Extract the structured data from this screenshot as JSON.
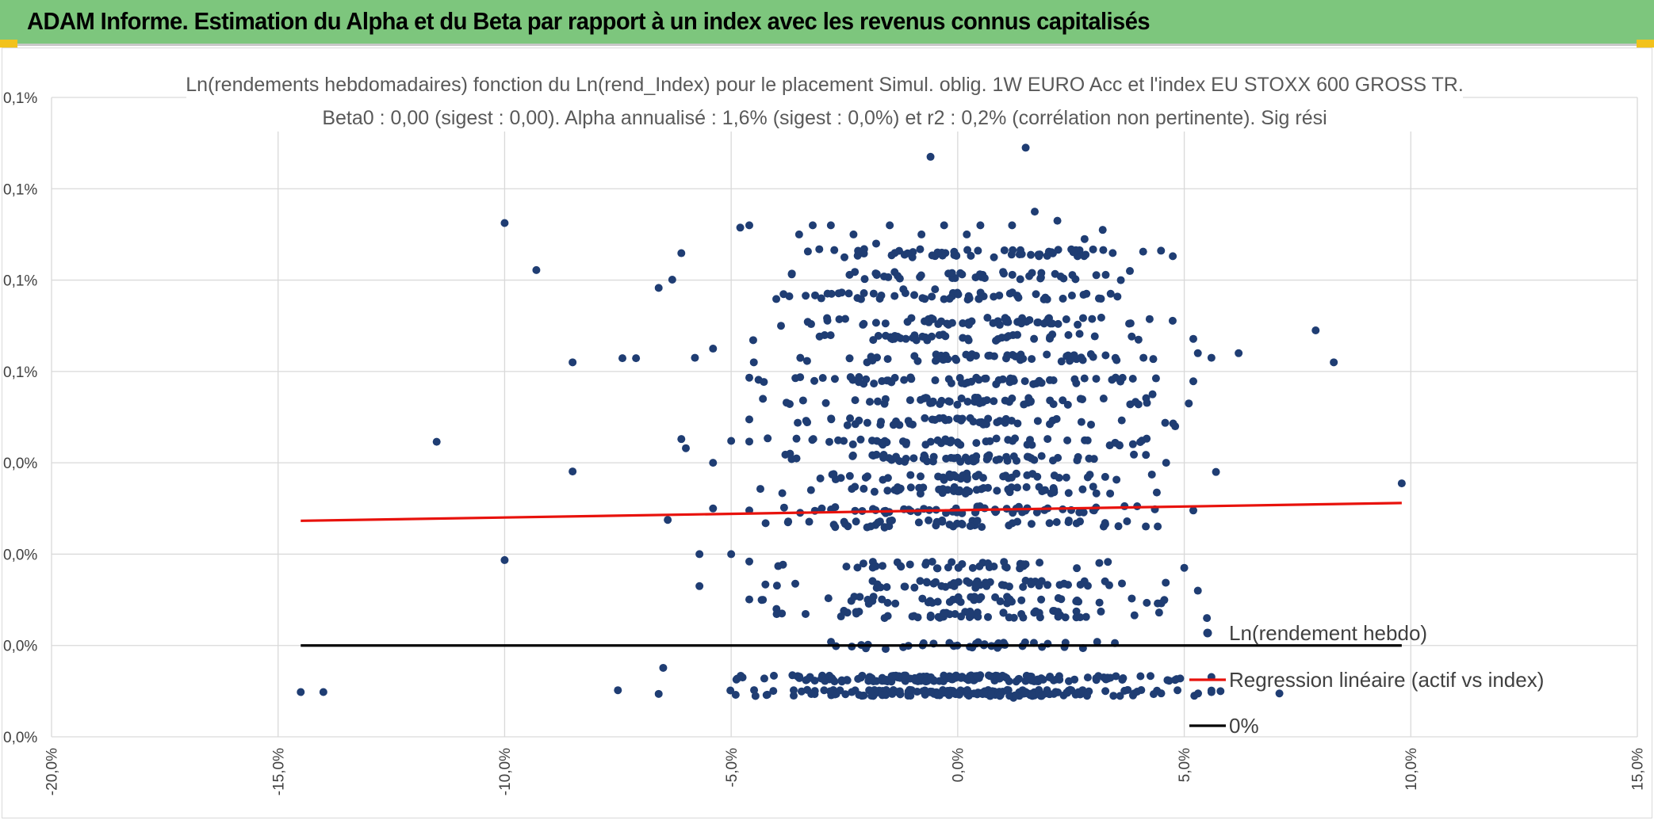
{
  "header": {
    "title": "ADAM Informe. Estimation du Alpha et du Beta par rapport à un index avec les revenus connus capitalisés"
  },
  "colors": {
    "header_bg": "#7dc67d",
    "points": "#1f3d73",
    "regression": "#e8120c",
    "zero_line": "#000000",
    "grid": "#d9d9d9"
  },
  "chart_data": {
    "type": "scatter",
    "title_lines": [
      "Ln(rendements hebdomadaires) fonction du Ln(rend_Index) pour le placement Simul. oblig. 1W EURO Acc et l'index EU STOXX 600 GROSS TR.",
      "Beta0 : 0,00 (sigest : 0,00). Alpha annualisé : 1,6% (sigest : 0,0%) et r2 : 0,2% (corrélation non pertinente). Sig rési"
    ],
    "xlim": [
      -20,
      15
    ],
    "x_ticks": [
      {
        "value": -20,
        "label": "-20,0%"
      },
      {
        "value": -15,
        "label": "-15,0%"
      },
      {
        "value": -10,
        "label": "-10,0%"
      },
      {
        "value": -5,
        "label": "-5,0%"
      },
      {
        "value": 0,
        "label": "0,0%"
      },
      {
        "value": 5,
        "label": "5,0%"
      },
      {
        "value": 10,
        "label": "10,0%"
      },
      {
        "value": 15,
        "label": "15,0%"
      }
    ],
    "ylim": [
      -0.02,
      0.12
    ],
    "y_ticks": [
      {
        "value": -0.02,
        "label": "0,0%"
      },
      {
        "value": 0.0,
        "label": "0,0%"
      },
      {
        "value": 0.02,
        "label": "0,0%"
      },
      {
        "value": 0.04,
        "label": "0,0%"
      },
      {
        "value": 0.06,
        "label": "0,1%"
      },
      {
        "value": 0.08,
        "label": "0,1%"
      },
      {
        "value": 0.1,
        "label": "0,1%"
      },
      {
        "value": 0.12,
        "label": "0,1%"
      }
    ],
    "grid": true,
    "legend_position": "bottom-right",
    "series": [
      {
        "name": "Ln(rendement hebdo)",
        "type": "scatter",
        "points": [
          [
            -14.5,
            -0.0102
          ],
          [
            -14.0,
            -0.0102
          ],
          [
            -11.5,
            0.0446
          ],
          [
            -10.0,
            0.0925
          ],
          [
            -10.0,
            0.0187
          ],
          [
            -9.3,
            0.0822
          ],
          [
            -8.5,
            0.062
          ],
          [
            -8.5,
            0.0381
          ],
          [
            -7.5,
            -0.0098
          ],
          [
            -7.4,
            0.0629
          ],
          [
            -7.1,
            0.0629
          ],
          [
            -6.6,
            -0.0106
          ],
          [
            -6.6,
            0.0783
          ],
          [
            -6.5,
            -0.0049
          ],
          [
            -6.4,
            0.0275
          ],
          [
            -6.3,
            0.0801
          ],
          [
            -6.1,
            0.0859
          ],
          [
            -6.1,
            0.0452
          ],
          [
            -6.0,
            0.0432
          ],
          [
            -5.8,
            0.063
          ],
          [
            -5.7,
            0.02
          ],
          [
            -5.7,
            0.013
          ],
          [
            -5.4,
            0.03
          ],
          [
            -5.4,
            0.04
          ],
          [
            -5.4,
            0.065
          ],
          [
            -5.0,
            0.02
          ],
          [
            -5.0,
            0.0448
          ],
          [
            -4.8,
            0.0915
          ],
          [
            -4.6,
            0.092
          ],
          [
            -4.5,
            0.062
          ],
          [
            -4.3,
            0.01
          ],
          [
            -4.0,
            0.008
          ],
          [
            -3.9,
            0.07
          ],
          [
            -3.7,
            0.042
          ],
          [
            -3.5,
            0.09
          ],
          [
            -3.2,
            0.092
          ],
          [
            -3.0,
            0.03
          ],
          [
            -2.8,
            0.092
          ],
          [
            -2.5,
            0.085
          ],
          [
            -2.3,
            0.09
          ],
          [
            -2.0,
            0.062
          ],
          [
            -1.8,
            0.088
          ],
          [
            -1.5,
            0.092
          ],
          [
            -1.2,
            0.078
          ],
          [
            -1.0,
            0.085
          ],
          [
            -0.8,
            0.09
          ],
          [
            -0.6,
            0.107
          ],
          [
            -0.5,
            0.078
          ],
          [
            -0.3,
            0.092
          ],
          [
            0.2,
            0.09
          ],
          [
            0.5,
            0.092
          ],
          [
            0.8,
            0.085
          ],
          [
            1.2,
            0.092
          ],
          [
            1.5,
            0.109
          ],
          [
            1.7,
            0.095
          ],
          [
            2.2,
            0.093
          ],
          [
            2.8,
            0.089
          ],
          [
            3.2,
            0.091
          ],
          [
            3.6,
            0.08
          ],
          [
            3.8,
            0.082
          ],
          [
            4.1,
            0.063
          ],
          [
            4.3,
            0.055
          ],
          [
            4.6,
            0.04
          ],
          [
            4.8,
            0.048
          ],
          [
            5.0,
            0.017
          ],
          [
            5.1,
            0.053
          ],
          [
            5.3,
            0.012
          ],
          [
            5.3,
            0.064
          ],
          [
            5.5,
            0.006
          ],
          [
            5.6,
            0.063
          ],
          [
            5.7,
            0.038
          ],
          [
            5.8,
            -0.01
          ],
          [
            6.2,
            0.064
          ],
          [
            7.1,
            -0.0105
          ],
          [
            7.9,
            0.069
          ],
          [
            8.3,
            0.062
          ],
          [
            9.8,
            0.0355
          ]
        ],
        "cluster": {
          "x_center": 0.2,
          "x_spread": 3.2,
          "bands": [
            0.0,
            0.0068,
            0.0099,
            0.0134,
            0.0176,
            0.0266,
            0.0297,
            0.034,
            0.037,
            0.041,
            0.0446,
            0.049,
            0.0535,
            0.058,
            0.063,
            0.0675,
            0.071,
            0.0765,
            0.081,
            0.086
          ],
          "count": 1060
        }
      },
      {
        "name": "Regression linéaire (actif vs index)",
        "type": "line",
        "points": [
          [
            -14.5,
            0.0273
          ],
          [
            9.8,
            0.0312
          ]
        ]
      },
      {
        "name": "0%",
        "type": "line",
        "points": [
          [
            -14.5,
            0.0
          ],
          [
            9.8,
            0.0
          ]
        ]
      }
    ]
  }
}
